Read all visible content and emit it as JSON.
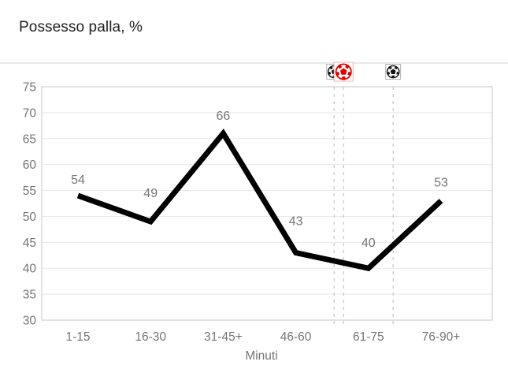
{
  "header": {
    "title": "Possesso palla, %"
  },
  "chart_data": {
    "type": "line",
    "title": "Possesso palla, %",
    "categories": [
      "1-15",
      "16-30",
      "31-45+",
      "46-60",
      "61-75",
      "76-90+"
    ],
    "values": [
      54,
      49,
      66,
      43,
      40,
      53
    ],
    "xlabel": "Minuti",
    "ylabel": "",
    "ylim": [
      30,
      75
    ],
    "ytick_step": 5,
    "yticks": [
      30,
      35,
      40,
      45,
      50,
      55,
      60,
      65,
      70,
      75
    ],
    "grid": true,
    "legend": "none",
    "line_color": "#000000",
    "label_color": "#757575",
    "axis_color": "#c4c4c4",
    "grid_color": "#e8e8e8",
    "marker_line_color": "#c6c6c6",
    "goal_markers": [
      {
        "icon": "soccer-ball",
        "team_color": "#111111",
        "x_frac": 0.649,
        "size": 19,
        "box_border": "#b5b5b5"
      },
      {
        "icon": "soccer-ball",
        "team_color": "#e00000",
        "x_frac": 0.67,
        "size": 24,
        "box_border": "#f2b3ad"
      },
      {
        "icon": "soccer-ball",
        "team_color": "#111111",
        "x_frac": 0.78,
        "size": 19,
        "box_border": "#b5b5b5"
      }
    ]
  }
}
